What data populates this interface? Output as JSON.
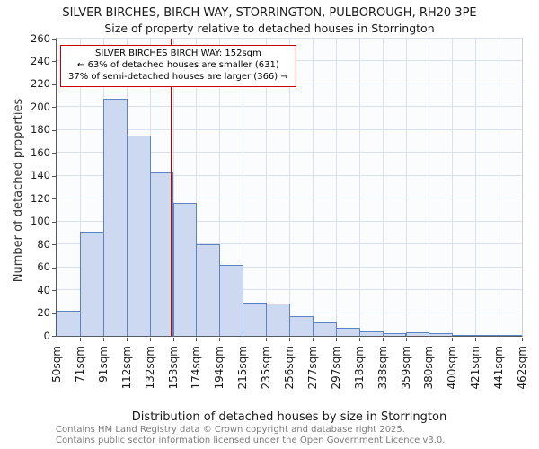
{
  "chart_data": {
    "type": "bar",
    "title": "SILVER BIRCHES, BIRCH WAY, STORRINGTON, PULBOROUGH, RH20 3PE",
    "subtitle": "Size of property relative to detached houses in Storrington",
    "xlabel": "Distribution of detached houses by size in Storrington",
    "ylabel": "Number of detached properties",
    "ylim": [
      0,
      260
    ],
    "ytick_step": 20,
    "grid": true,
    "legend": "none",
    "bin_edge_labels": [
      "50sqm",
      "71sqm",
      "91sqm",
      "112sqm",
      "132sqm",
      "153sqm",
      "174sqm",
      "194sqm",
      "215sqm",
      "235sqm",
      "256sqm",
      "277sqm",
      "297sqm",
      "318sqm",
      "338sqm",
      "359sqm",
      "380sqm",
      "400sqm",
      "421sqm",
      "441sqm",
      "462sqm"
    ],
    "bin_edges_sqm": [
      50,
      71,
      91,
      112,
      132,
      153,
      174,
      194,
      215,
      235,
      256,
      277,
      297,
      318,
      338,
      359,
      380,
      400,
      421,
      441,
      462
    ],
    "values": [
      22,
      91,
      207,
      175,
      143,
      116,
      80,
      62,
      29,
      28,
      17,
      12,
      7,
      4,
      2,
      3,
      2,
      1,
      1,
      1
    ],
    "marker": {
      "value_sqm": 152
    },
    "annotation": {
      "line1": "SILVER BIRCHES BIRCH WAY: 152sqm",
      "line2": "← 63% of detached houses are smaller (631)",
      "line3": "37% of semi-detached houses are larger (366) →"
    },
    "colors": {
      "bar_fill": "#cdd9f0",
      "bar_border": "#5d83c3",
      "marker_line": "#991111",
      "annotation_border": "#cc0000",
      "grid": "#d9e1f0"
    }
  },
  "footer": {
    "line1": "Contains HM Land Registry data © Crown copyright and database right 2025.",
    "line2": "Contains public sector information licensed under the Open Government Licence v3.0."
  }
}
